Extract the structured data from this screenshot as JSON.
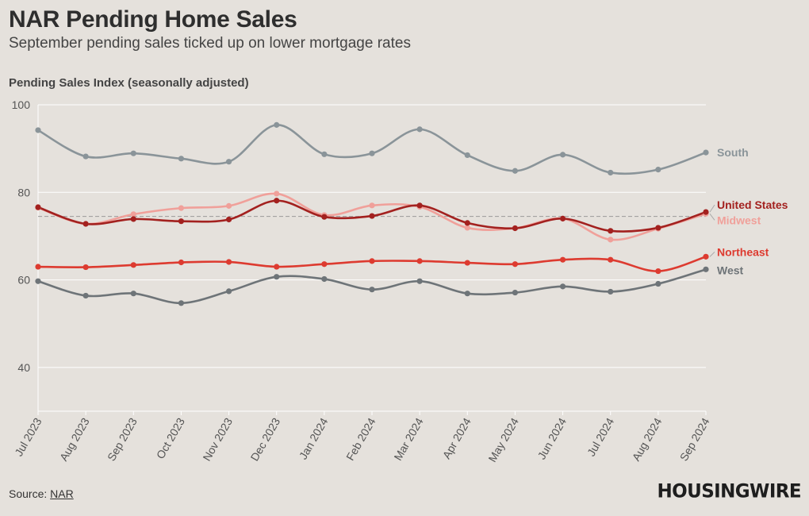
{
  "header": {
    "title": "NAR Pending Home Sales",
    "subtitle": "September pending sales ticked up on lower mortgage rates"
  },
  "footer": {
    "source_label": "Source:",
    "source_link": "NAR",
    "logo": "HOUSINGWIRE"
  },
  "chart_data": {
    "type": "line",
    "title": "NAR Pending Home Sales",
    "subtitle": "September pending sales ticked up on lower mortgage rates",
    "ylabel": "Pending Sales Index (seasonally adjusted)",
    "xlabel": "",
    "ylim": [
      30,
      100
    ],
    "yticks": [
      40,
      60,
      80,
      100
    ],
    "grid": true,
    "reference_line": 74.5,
    "categories": [
      "Jul 2023",
      "Aug 2023",
      "Sep 2023",
      "Oct 2023",
      "Nov 2023",
      "Dec 2023",
      "Jan 2024",
      "Feb 2024",
      "Mar 2024",
      "Apr 2024",
      "May 2024",
      "Jun 2024",
      "Jul 2024",
      "Aug 2024",
      "Sep 2024"
    ],
    "series": [
      {
        "name": "South",
        "color": "#8a9499",
        "values": [
          94.2,
          88.2,
          88.9,
          87.7,
          87.0,
          95.4,
          88.7,
          88.9,
          94.4,
          88.5,
          84.9,
          88.6,
          84.5,
          85.2,
          89.1
        ]
      },
      {
        "name": "Midwest",
        "color": "#f0a09a",
        "values": [
          76.5,
          72.8,
          75.0,
          76.4,
          76.9,
          79.7,
          74.8,
          77.0,
          76.7,
          71.9,
          71.8,
          74.0,
          69.2,
          71.7,
          75.1
        ]
      },
      {
        "name": "United States",
        "color": "#a3211f",
        "values": [
          76.6,
          72.8,
          73.9,
          73.4,
          73.8,
          78.1,
          74.4,
          74.6,
          77.0,
          73.0,
          71.8,
          74.0,
          71.2,
          71.9,
          75.5
        ]
      },
      {
        "name": "Northeast",
        "color": "#dd3b30",
        "values": [
          63.0,
          62.9,
          63.4,
          64.0,
          64.1,
          63.0,
          63.6,
          64.3,
          64.3,
          63.9,
          63.6,
          64.6,
          64.6,
          62.0,
          65.3
        ]
      },
      {
        "name": "West",
        "color": "#6e7478",
        "values": [
          59.7,
          56.4,
          56.9,
          54.7,
          57.4,
          60.7,
          60.2,
          57.8,
          59.7,
          56.9,
          57.1,
          58.5,
          57.3,
          59.1,
          62.4
        ]
      }
    ]
  }
}
